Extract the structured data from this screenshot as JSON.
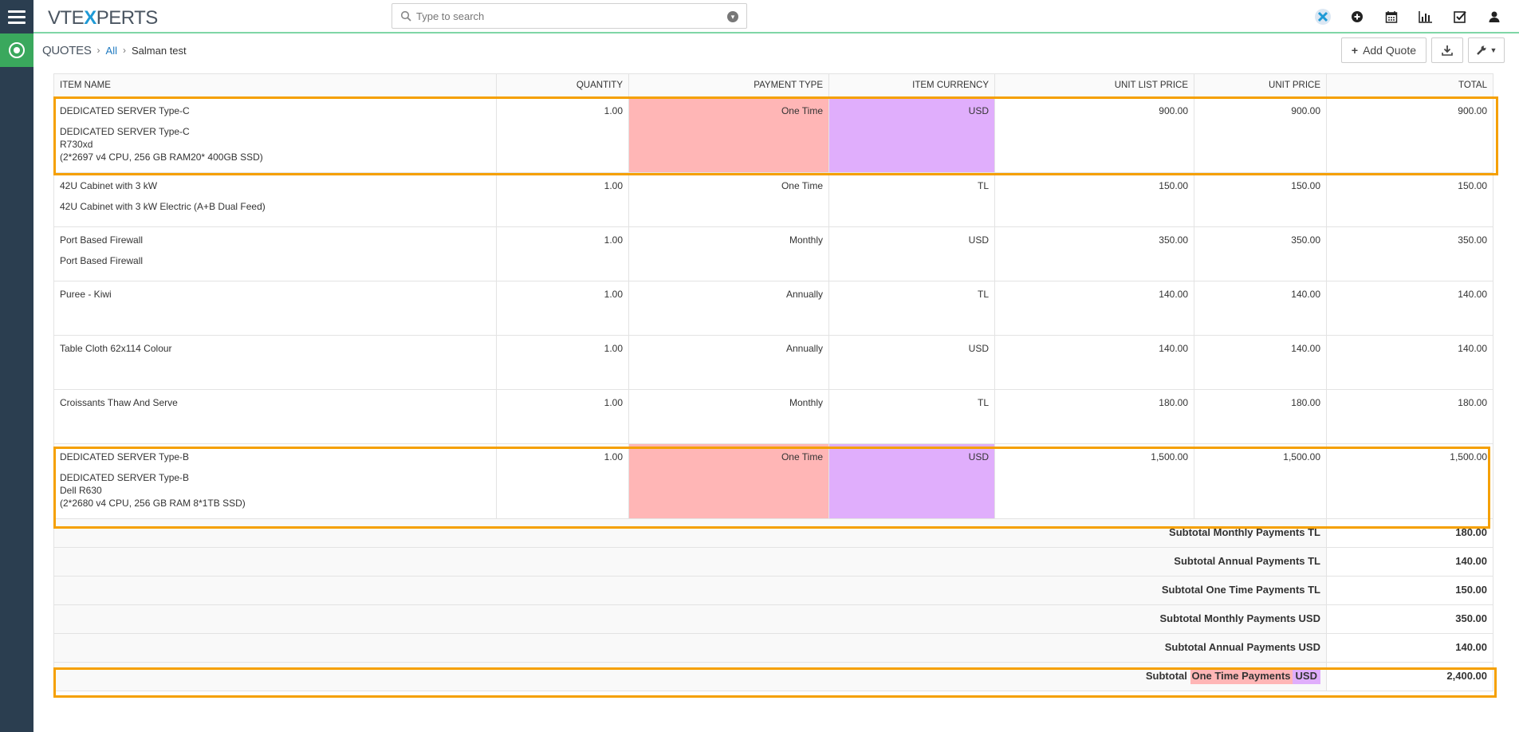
{
  "app": {
    "logo": {
      "pre": "VTE",
      "x": "X",
      "post": "PERTS"
    },
    "search": {
      "placeholder": "Type to search"
    },
    "top_icons": [
      "vtexperts-icon",
      "add-icon",
      "calendar-icon",
      "reports-icon",
      "tasks-icon",
      "user-icon"
    ]
  },
  "breadcrumb": {
    "module": "QUOTES",
    "all": "All",
    "record": "Salman test"
  },
  "toolbar": {
    "add_quote": "Add Quote"
  },
  "table": {
    "headers": [
      "ITEM NAME",
      "QUANTITY",
      "PAYMENT TYPE",
      "ITEM CURRENCY",
      "UNIT LIST PRICE",
      "UNIT PRICE",
      "TOTAL"
    ],
    "rows": [
      {
        "name": "DEDICATED SERVER Type-C",
        "description": "DEDICATED SERVER Type-C\nR730xd\n(2*2697 v4 CPU, 256 GB RAM20* 400GB SSD)",
        "quantity": "1.00",
        "payment_type": "One Time",
        "currency": "USD",
        "unit_list_price": "900.00",
        "unit_price": "900.00",
        "total": "900.00"
      },
      {
        "name": "42U Cabinet with 3 kW",
        "description": "42U Cabinet with 3 kW Electric (A+B Dual Feed)",
        "quantity": "1.00",
        "payment_type": "One Time",
        "currency": "TL",
        "unit_list_price": "150.00",
        "unit_price": "150.00",
        "total": "150.00"
      },
      {
        "name": "Port Based Firewall",
        "description": "Port Based Firewall",
        "quantity": "1.00",
        "payment_type": "Monthly",
        "currency": "USD",
        "unit_list_price": "350.00",
        "unit_price": "350.00",
        "total": "350.00"
      },
      {
        "name": "Puree - Kiwi",
        "description": "",
        "quantity": "1.00",
        "payment_type": "Annually",
        "currency": "TL",
        "unit_list_price": "140.00",
        "unit_price": "140.00",
        "total": "140.00"
      },
      {
        "name": "Table Cloth 62x114 Colour",
        "description": "",
        "quantity": "1.00",
        "payment_type": "Annually",
        "currency": "USD",
        "unit_list_price": "140.00",
        "unit_price": "140.00",
        "total": "140.00"
      },
      {
        "name": "Croissants Thaw And Serve",
        "description": "",
        "quantity": "1.00",
        "payment_type": "Monthly",
        "currency": "TL",
        "unit_list_price": "180.00",
        "unit_price": "180.00",
        "total": "180.00"
      },
      {
        "name": "DEDICATED SERVER Type-B",
        "description": "DEDICATED SERVER Type-B\nDell R630\n(2*2680 v4 CPU, 256 GB RAM 8*1TB SSD)",
        "quantity": "1.00",
        "payment_type": "One Time",
        "currency": "USD",
        "unit_list_price": "1,500.00",
        "unit_price": "1,500.00",
        "total": "1,500.00"
      }
    ],
    "subtotals": [
      {
        "label": "Subtotal Monthly Payments TL",
        "value": "180.00"
      },
      {
        "label": "Subtotal Annual Payments TL",
        "value": "140.00"
      },
      {
        "label": "Subtotal One Time Payments TL",
        "value": "150.00"
      },
      {
        "label": "Subtotal Monthly Payments USD",
        "value": "350.00"
      },
      {
        "label": "Subtotal Annual Payments USD",
        "value": "140.00"
      }
    ],
    "highlighted_subtotal": {
      "prefix": "Subtotal",
      "payment": "One Time Payments",
      "currency": "USD",
      "value": "2,400.00"
    }
  },
  "colors": {
    "payment_highlight": "#ffb6b6",
    "currency_highlight": "#e0aefc",
    "outline": "#f5a000",
    "rail": "#2b3e50",
    "module": "#3aa85d"
  }
}
